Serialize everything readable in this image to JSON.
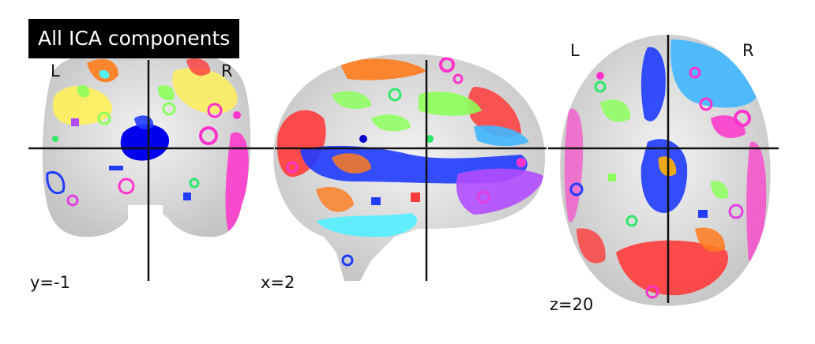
{
  "title": "All ICA components",
  "views": [
    {
      "name": "coronal",
      "coord_label": "y=-1",
      "left_label": "L",
      "right_label": "R"
    },
    {
      "name": "sagittal",
      "coord_label": "x=2"
    },
    {
      "name": "axial",
      "coord_label": "z=20",
      "left_label": "L",
      "right_label": "R"
    }
  ],
  "colors": {
    "crosshair": "#111111",
    "background": "#ffffff",
    "components": [
      "#ff3b3b",
      "#ff7b1c",
      "#ffcc00",
      "#e9f542",
      "#8cff5a",
      "#2fe86b",
      "#1f3cff",
      "#0000cc",
      "#3fb7ff",
      "#53f0ff",
      "#b14dff",
      "#ff33cc",
      "#e040e0",
      "#3ad0c0"
    ]
  }
}
